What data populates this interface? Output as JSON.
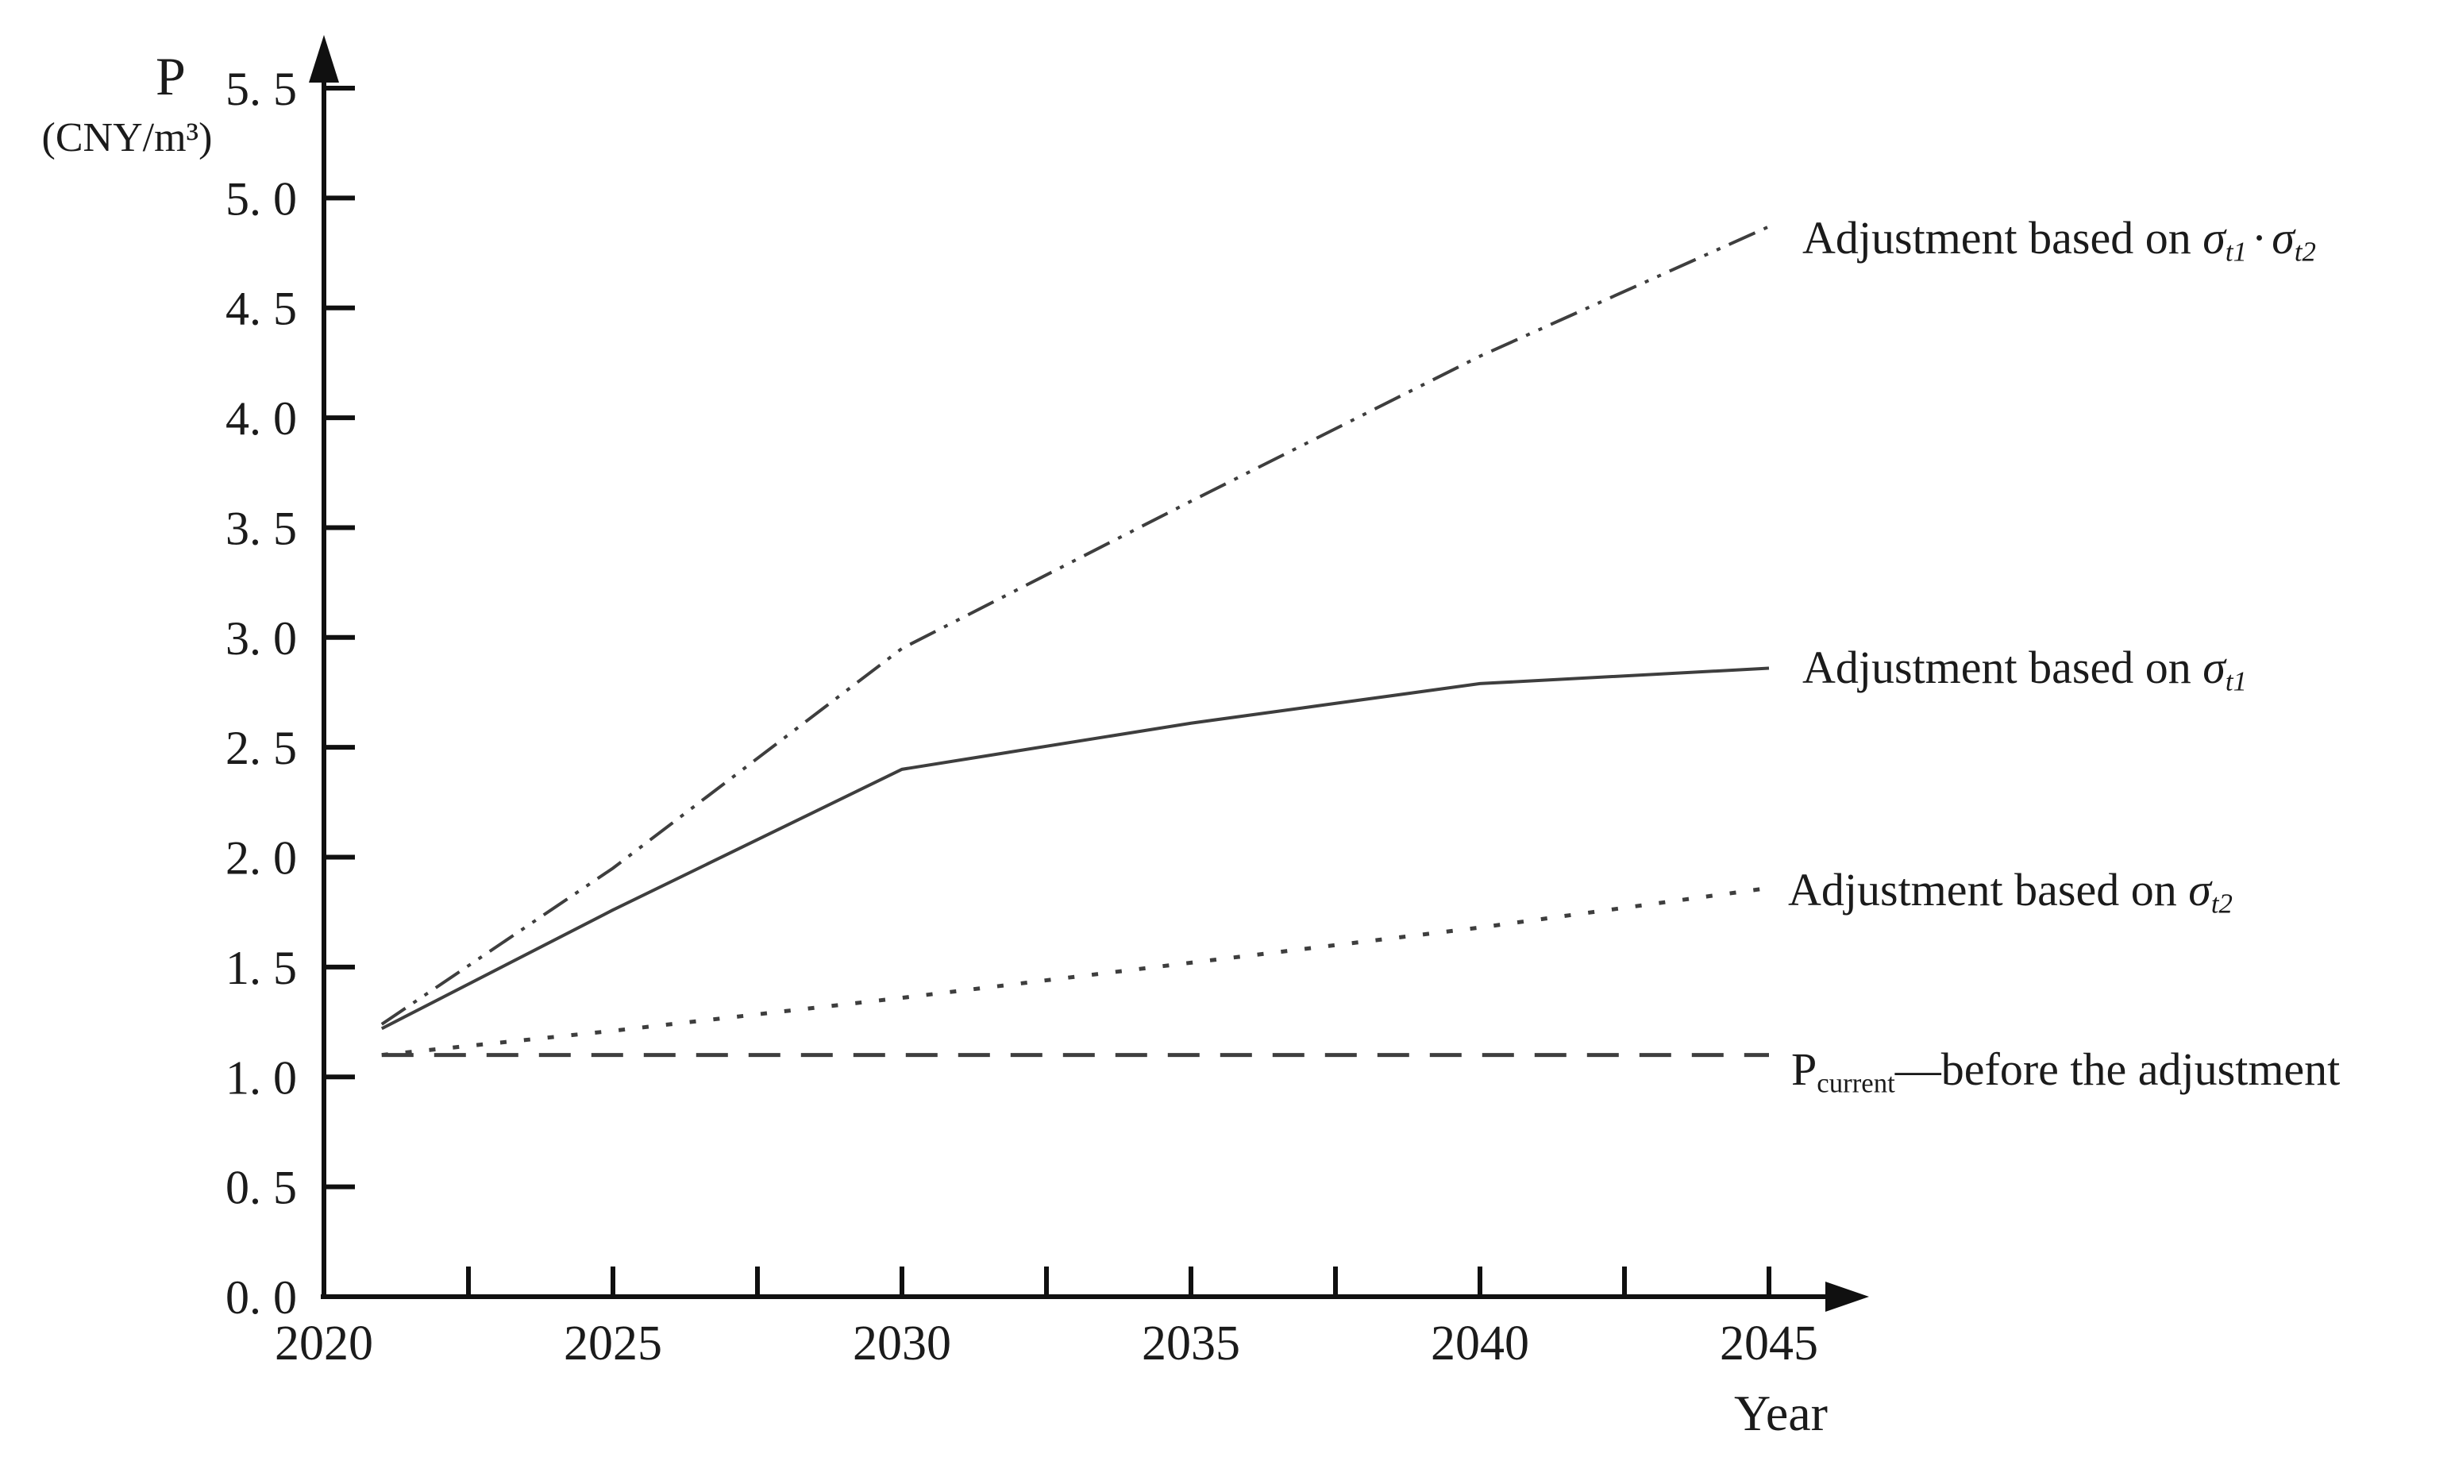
{
  "figure": {
    "background": "#ffffff",
    "axis_color": "#101010",
    "curve_color": "#3e3e3e",
    "text_color": "#1b1b1b"
  },
  "y_axis": {
    "title": "P",
    "unit": "(CNY/m³)",
    "tick_values": [
      5.5,
      5.0,
      4.5,
      4.0,
      3.5,
      3.0,
      2.5,
      2.0,
      1.5,
      1.0,
      0.5,
      0.0
    ],
    "tick_labels": [
      "5. 5",
      "5. 0",
      "4. 5",
      "4. 0",
      "3. 5",
      "3. 0",
      "2. 5",
      "2. 0",
      "1. 5",
      "1. 0",
      "0. 5",
      "0. 0"
    ]
  },
  "x_axis": {
    "title": "Year",
    "tick_values": [
      2020,
      2025,
      2030,
      2035,
      2040,
      2045
    ],
    "tick_labels": [
      "2020",
      "2025",
      "2030",
      "2035",
      "2040",
      "2045"
    ],
    "minor_tick_values": [
      2022.5,
      2027.5,
      2032.5,
      2037.5,
      2042.5
    ]
  },
  "legends": [
    {
      "prefix": "Adjustment based on ",
      "sym1": "σ",
      "sub1": "t1",
      "dot": "·",
      "sym2": "σ",
      "sub2": "t2"
    },
    {
      "prefix": "Adjustment based on ",
      "sym1": "σ",
      "sub1": "t1"
    },
    {
      "prefix": "Adjustment based on ",
      "sym1": "σ",
      "sub1": "t2"
    },
    {
      "p": "P",
      "psub": "current",
      "rest": "—before the adjustment"
    }
  ],
  "chart_data": {
    "type": "line",
    "title": "",
    "xlabel": "Year",
    "ylabel": "P (CNY/m³)",
    "xlim": [
      2020,
      2046.5
    ],
    "ylim": [
      0.0,
      5.5
    ],
    "y_tick_step": 0.5,
    "grid": false,
    "legend_position": "right of line ends, unboxed",
    "x": [
      2021,
      2025,
      2030,
      2035,
      2040,
      2045
    ],
    "series": [
      {
        "name": "Adjustment based on σt1·σt2",
        "style": "dash-dot-dot",
        "values": [
          1.24,
          1.95,
          2.95,
          3.62,
          4.28,
          4.87
        ]
      },
      {
        "name": "Adjustment based on σt1",
        "style": "solid",
        "values": [
          1.22,
          1.76,
          2.4,
          2.61,
          2.79,
          2.86
        ]
      },
      {
        "name": "Adjustment based on σt2",
        "style": "dotted",
        "values": [
          1.1,
          1.21,
          1.36,
          1.52,
          1.68,
          1.86
        ]
      },
      {
        "name": "Pcurrent—before the adjustment",
        "style": "dashed",
        "values": [
          1.1,
          1.1,
          1.1,
          1.1,
          1.1,
          1.1
        ]
      }
    ]
  }
}
